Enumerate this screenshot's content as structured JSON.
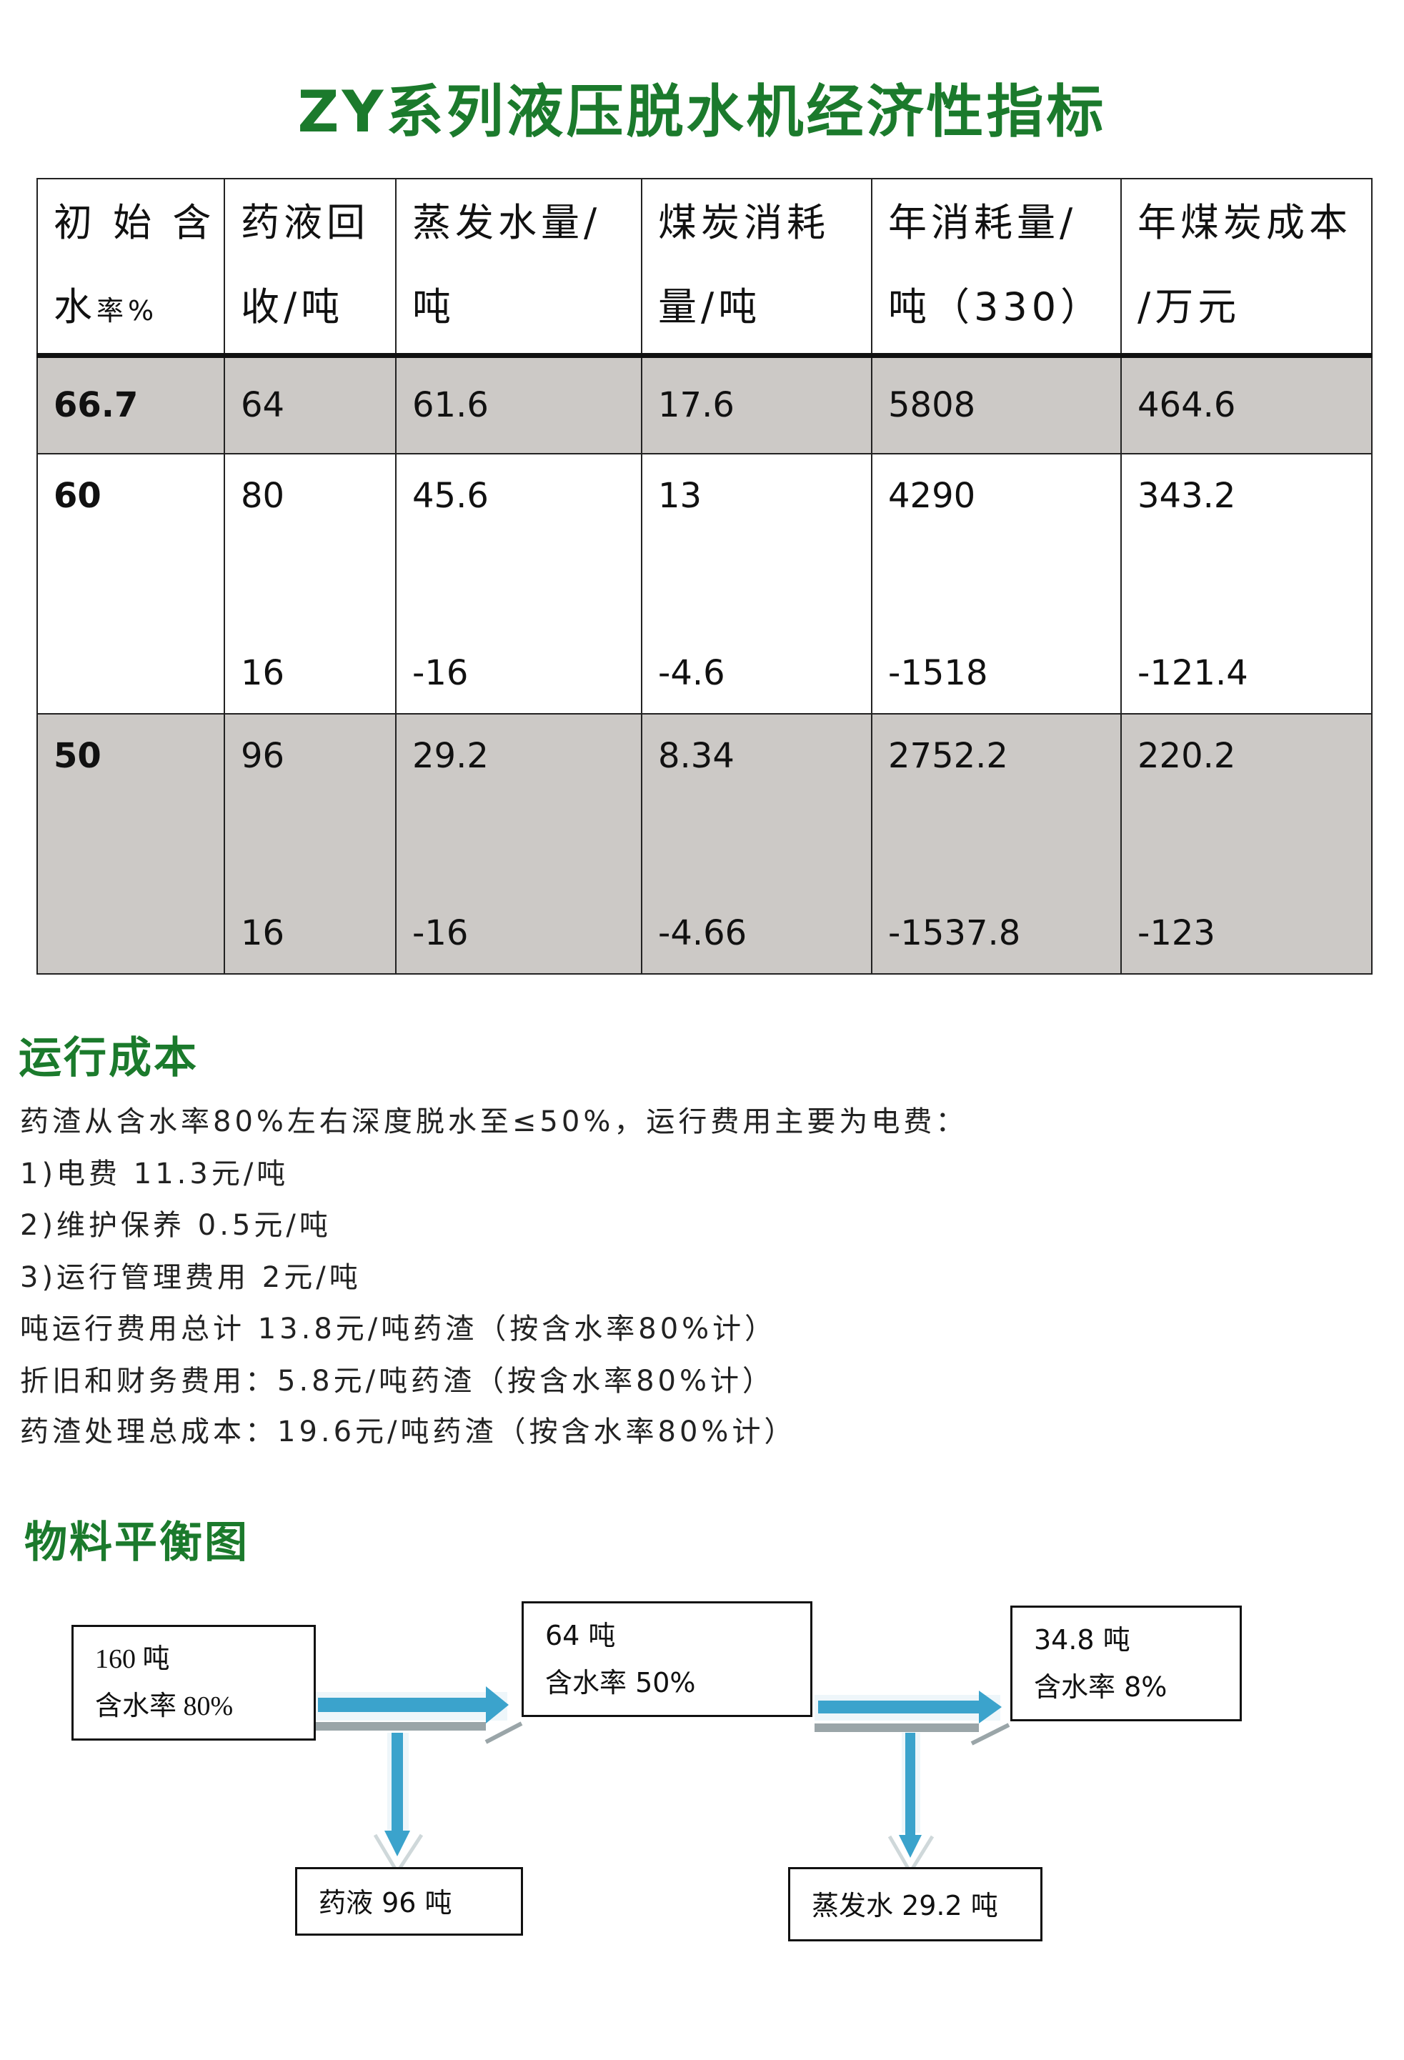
{
  "title": "ZY系列液压脱水机经济性指标",
  "table": {
    "headers": [
      [
        "初 始 含",
        "水",
        "率%"
      ],
      [
        "药液回",
        "收/吨"
      ],
      [
        "蒸发水量/",
        "吨"
      ],
      [
        "煤炭消耗",
        "量/吨"
      ],
      [
        "年消耗量/",
        "吨（330）"
      ],
      [
        "年煤炭成本",
        "/万元"
      ]
    ],
    "rows": [
      {
        "cells": [
          "66.7",
          "64",
          "61.6",
          "17.6",
          "5808",
          "464.6"
        ],
        "diff": []
      },
      {
        "cells": [
          "60",
          "80",
          "45.6",
          "13",
          "4290",
          "343.2"
        ],
        "diff": [
          "",
          "16",
          "-16",
          "-4.6",
          "-1518",
          "-121.4"
        ]
      },
      {
        "cells": [
          "50",
          "96",
          "29.2",
          "8.34",
          "2752.2",
          "220.2"
        ],
        "diff": [
          "",
          "16",
          "-16",
          "-4.66",
          "-1537.8",
          "-123"
        ]
      }
    ],
    "shade_color": "#ccc9c6"
  },
  "running_cost": {
    "heading": "运行成本",
    "lines": [
      "药渣从含水率80%左右深度脱水至≤50%，运行费用主要为电费：",
      "1)电费   11.3元/吨",
      "2)维护保养   0.5元/吨",
      "3)运行管理费用   2元/吨",
      "吨运行费用总计   13.8元/吨药渣（按含水率80%计）",
      "折旧和财务费用：5.8元/吨药渣（按含水率80%计）",
      "药渣处理总成本：19.6元/吨药渣（按含水率80%计）"
    ]
  },
  "balance": {
    "heading": "物料平衡图",
    "input": {
      "amount": "160 吨",
      "moisture": "含水率 80%"
    },
    "stage1": {
      "amount": "64 吨",
      "moisture": "含水率 50%"
    },
    "stage2": {
      "amount": "34.8 吨",
      "moisture": "含水率 8%"
    },
    "liquor": "药液 96 吨",
    "evaporated": "蒸发水 29.2 吨",
    "arrow_color": "#3ba3cc"
  },
  "colors": {
    "heading": "#1b7a2c"
  }
}
